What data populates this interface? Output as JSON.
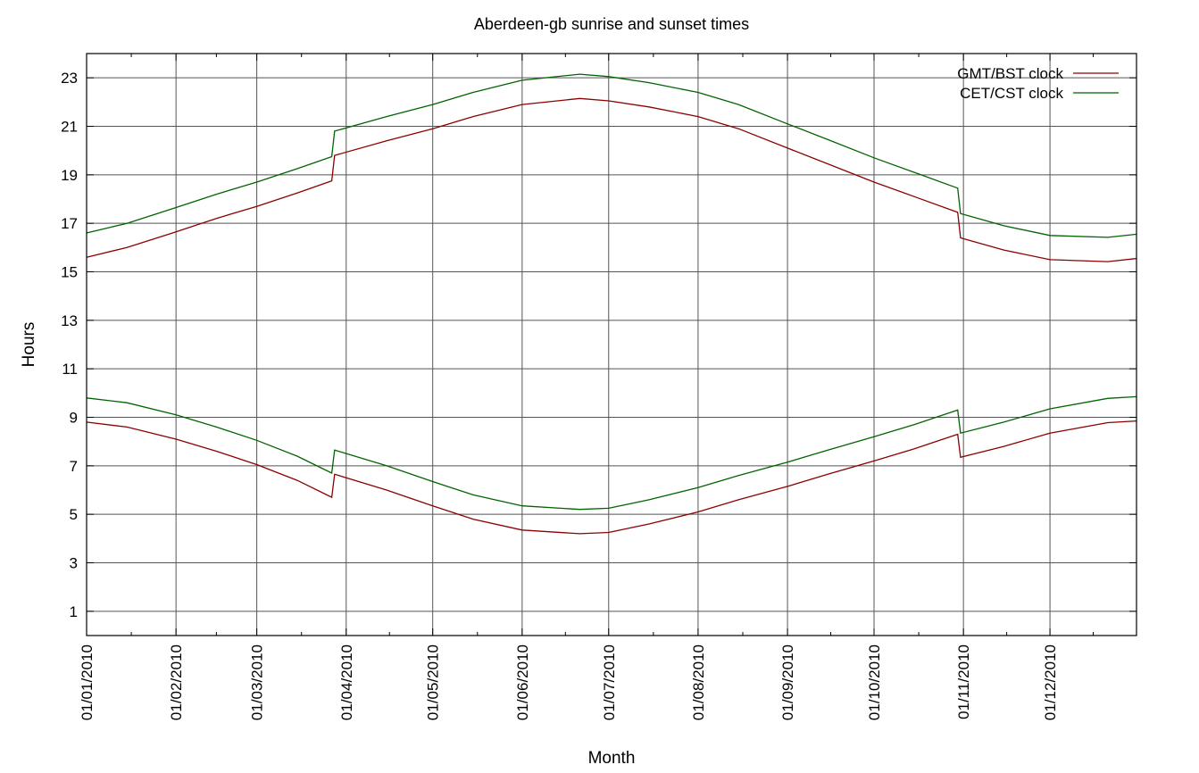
{
  "chart_data": {
    "type": "line",
    "title": "Aberdeen-gb sunrise and sunset times",
    "xlabel": "Month",
    "ylabel": "Hours",
    "xlim": [
      "01/01/2010",
      "31/12/2010"
    ],
    "ylim": [
      0,
      24
    ],
    "yticks": [
      1,
      3,
      5,
      7,
      9,
      11,
      13,
      15,
      17,
      19,
      21,
      23
    ],
    "xticks": [
      "01/01/2010",
      "01/02/2010",
      "01/03/2010",
      "01/04/2010",
      "01/05/2010",
      "01/06/2010",
      "01/07/2010",
      "01/08/2010",
      "01/09/2010",
      "01/10/2010",
      "01/11/2010",
      "01/12/2010"
    ],
    "grid": true,
    "legend_position": "top-right",
    "series": [
      {
        "name": "GMT/BST clock",
        "color": "#8b0000",
        "curves": [
          {
            "x": [
              "01/01/2010",
              "15/01/2010",
              "01/02/2010",
              "15/02/2010",
              "01/03/2010",
              "15/03/2010",
              "27/03/2010",
              "28/03/2010",
              "15/04/2010",
              "01/05/2010",
              "15/05/2010",
              "01/06/2010",
              "21/06/2010",
              "01/07/2010",
              "15/07/2010",
              "01/08/2010",
              "15/08/2010",
              "01/09/2010",
              "15/09/2010",
              "01/10/2010",
              "15/10/2010",
              "30/10/2010",
              "31/10/2010",
              "15/11/2010",
              "01/12/2010",
              "21/12/2010",
              "31/12/2010"
            ],
            "y": [
              15.6,
              16.0,
              16.65,
              17.2,
              17.7,
              18.25,
              18.75,
              19.8,
              20.4,
              20.9,
              21.4,
              21.9,
              22.15,
              22.05,
              21.8,
              21.4,
              20.9,
              20.1,
              19.45,
              18.7,
              18.1,
              17.45,
              16.4,
              15.9,
              15.5,
              15.42,
              15.55
            ]
          },
          {
            "x": [
              "01/01/2010",
              "15/01/2010",
              "01/02/2010",
              "15/02/2010",
              "01/03/2010",
              "15/03/2010",
              "27/03/2010",
              "28/03/2010",
              "15/04/2010",
              "01/05/2010",
              "15/05/2010",
              "01/06/2010",
              "21/06/2010",
              "01/07/2010",
              "15/07/2010",
              "01/08/2010",
              "15/08/2010",
              "01/09/2010",
              "15/09/2010",
              "01/10/2010",
              "15/10/2010",
              "30/10/2010",
              "31/10/2010",
              "15/11/2010",
              "01/12/2010",
              "21/12/2010",
              "31/12/2010"
            ],
            "y": [
              8.8,
              8.6,
              8.1,
              7.6,
              7.05,
              6.4,
              5.7,
              6.65,
              6.0,
              5.35,
              4.8,
              4.35,
              4.2,
              4.25,
              4.6,
              5.1,
              5.6,
              6.15,
              6.65,
              7.2,
              7.7,
              8.3,
              7.35,
              7.8,
              8.35,
              8.78,
              8.85
            ]
          }
        ]
      },
      {
        "name": "CET/CST clock",
        "color": "#006400",
        "curves": [
          {
            "x": [
              "01/01/2010",
              "15/01/2010",
              "01/02/2010",
              "15/02/2010",
              "01/03/2010",
              "15/03/2010",
              "27/03/2010",
              "28/03/2010",
              "15/04/2010",
              "01/05/2010",
              "15/05/2010",
              "01/06/2010",
              "21/06/2010",
              "01/07/2010",
              "15/07/2010",
              "01/08/2010",
              "15/08/2010",
              "01/09/2010",
              "15/09/2010",
              "01/10/2010",
              "15/10/2010",
              "30/10/2010",
              "31/10/2010",
              "15/11/2010",
              "01/12/2010",
              "21/12/2010",
              "31/12/2010"
            ],
            "y": [
              16.6,
              17.0,
              17.65,
              18.2,
              18.7,
              19.25,
              19.75,
              20.8,
              21.4,
              21.9,
              22.4,
              22.9,
              23.15,
              23.05,
              22.8,
              22.4,
              21.9,
              21.1,
              20.45,
              19.7,
              19.1,
              18.45,
              17.4,
              16.9,
              16.5,
              16.42,
              16.55
            ]
          },
          {
            "x": [
              "01/01/2010",
              "15/01/2010",
              "01/02/2010",
              "15/02/2010",
              "01/03/2010",
              "15/03/2010",
              "27/03/2010",
              "28/03/2010",
              "15/04/2010",
              "01/05/2010",
              "15/05/2010",
              "01/06/2010",
              "21/06/2010",
              "01/07/2010",
              "15/07/2010",
              "01/08/2010",
              "15/08/2010",
              "01/09/2010",
              "15/09/2010",
              "01/10/2010",
              "15/10/2010",
              "30/10/2010",
              "31/10/2010",
              "15/11/2010",
              "01/12/2010",
              "21/12/2010",
              "31/12/2010"
            ],
            "y": [
              9.8,
              9.6,
              9.1,
              8.6,
              8.05,
              7.4,
              6.7,
              7.65,
              7.0,
              6.35,
              5.8,
              5.35,
              5.2,
              5.25,
              5.6,
              6.1,
              6.6,
              7.15,
              7.65,
              8.2,
              8.7,
              9.3,
              8.35,
              8.8,
              9.35,
              9.78,
              9.85
            ]
          }
        ]
      }
    ]
  }
}
